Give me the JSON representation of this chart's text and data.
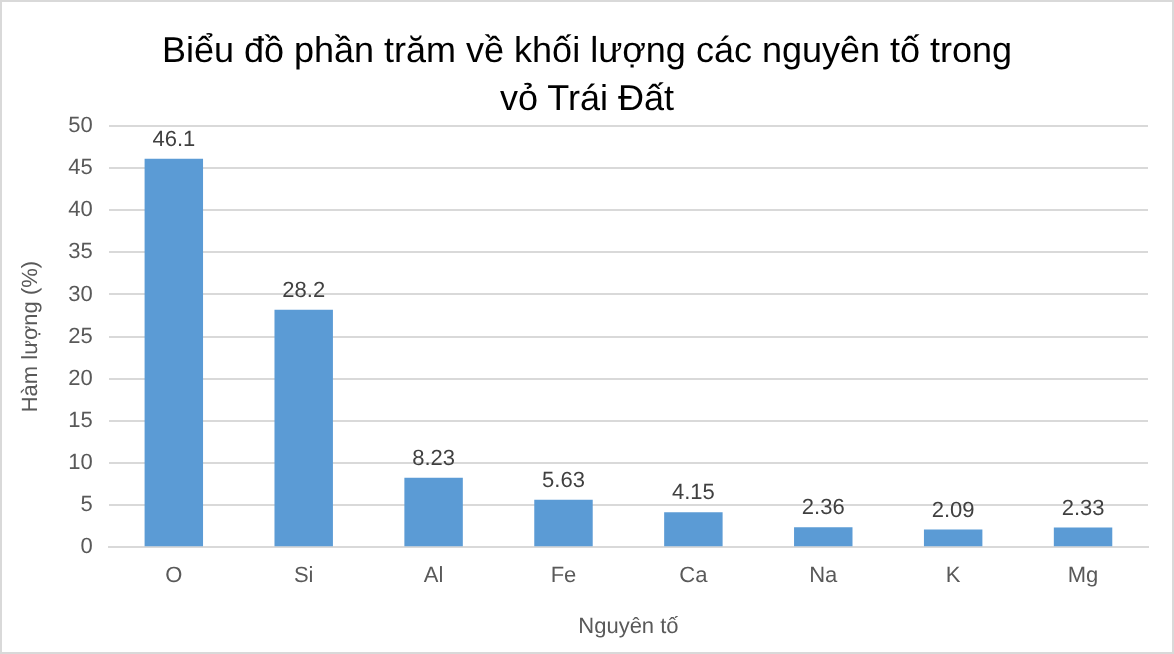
{
  "chart_data": {
    "type": "bar",
    "title": "Biểu đồ phần trăm về khối lượng các nguyên tố trong vỏ Trái Đất",
    "xlabel": "Nguyên tố",
    "ylabel": "Hàm lượng (%)",
    "categories": [
      "O",
      "Si",
      "Al",
      "Fe",
      "Ca",
      "Na",
      "K",
      "Mg"
    ],
    "values": [
      46.1,
      28.2,
      8.23,
      5.63,
      4.15,
      2.36,
      2.09,
      2.33
    ],
    "color": "#5b9bd5",
    "ylim": [
      0,
      50
    ],
    "yticks": [
      0,
      5,
      10,
      15,
      20,
      25,
      30,
      35,
      40,
      45,
      50
    ],
    "grid": "y",
    "data_labels": true,
    "legend": false
  }
}
